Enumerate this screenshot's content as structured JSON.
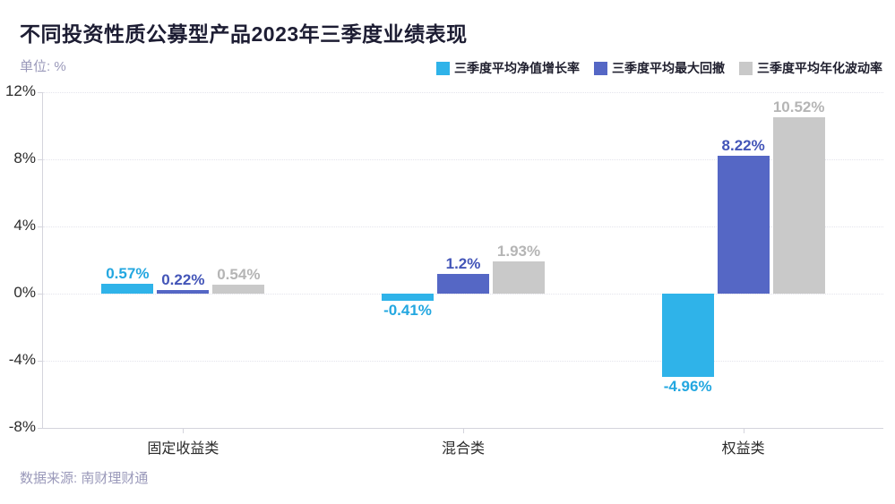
{
  "header": {
    "title": "不同投资性质公募型产品2023年三季度业绩表现",
    "unit_label": "单位: %"
  },
  "footer": {
    "source": "数据来源: 南财理财通"
  },
  "colors": {
    "title_text": "#1d1d33",
    "muted_text": "#9a99ba",
    "axis_line": "#d4d4dc",
    "gridline": "#e4e4ec",
    "tick_text": "#2b2b2b",
    "series_growth": "#2fb3e9",
    "series_drawdown": "#5567c5",
    "series_volatility": "#c9c9c9"
  },
  "chart_data": {
    "type": "bar",
    "title": "不同投资性质公募型产品2023年三季度业绩表现",
    "unit": "%",
    "categories": [
      "固定收益类",
      "混合类",
      "权益类"
    ],
    "series": [
      {
        "name": "三季度平均净值增长率",
        "color": "#2fb3e9",
        "label_color": "#23a7e0",
        "values": [
          0.57,
          -0.41,
          -4.96
        ],
        "labels": [
          "0.57%",
          "-0.41%",
          "-4.96%"
        ]
      },
      {
        "name": "三季度平均最大回撤",
        "color": "#5567c5",
        "label_color": "#4355b8",
        "values": [
          0.22,
          1.2,
          8.22
        ],
        "labels": [
          "0.22%",
          "1.2%",
          "8.22%"
        ]
      },
      {
        "name": "三季度平均年化波动率",
        "color": "#c9c9c9",
        "label_color": "#b5b5b5",
        "values": [
          0.54,
          1.93,
          10.52
        ],
        "labels": [
          "0.54%",
          "1.93%",
          "10.52%"
        ]
      }
    ],
    "y_ticks": [
      "12%",
      "8%",
      "4%",
      "0%",
      "-4%",
      "-8%"
    ],
    "y_tick_values": [
      12,
      8,
      4,
      0,
      -4,
      -8
    ],
    "ylim": [
      -8,
      12
    ],
    "grid": true,
    "grid_style": "dotted",
    "legend_position": "top-right"
  }
}
